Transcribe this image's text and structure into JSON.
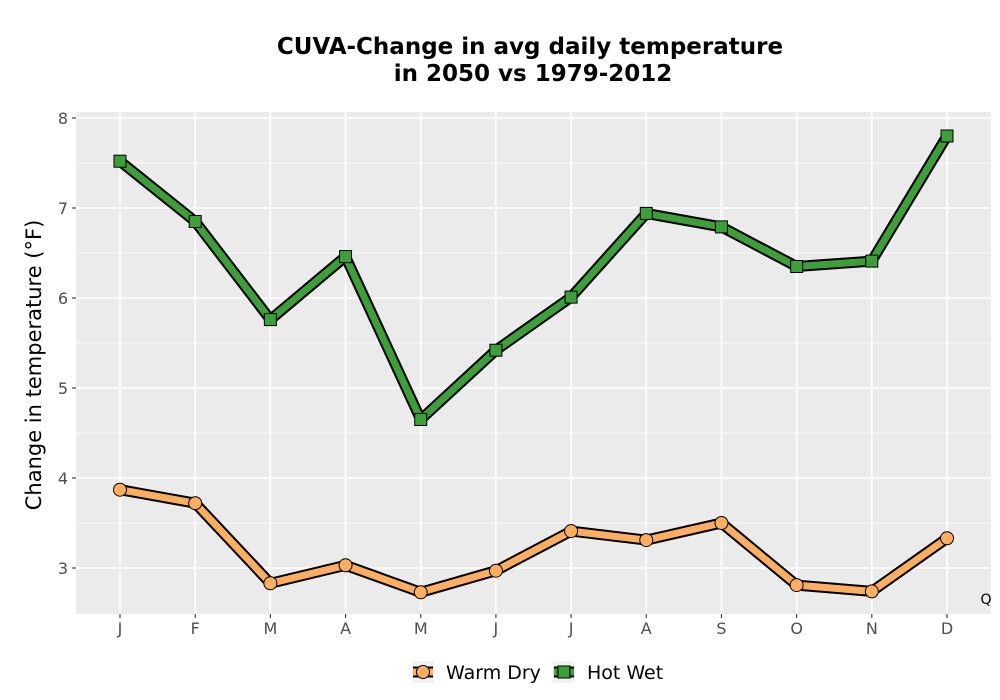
{
  "chart_data": {
    "type": "line",
    "title_lines": [
      "CUVA-Change in avg daily temperature",
      "in 2050 vs 1979-2012"
    ],
    "xlabel": "",
    "ylabel": "Change in temperature (°F)",
    "categories": [
      "J",
      "F",
      "M",
      "A",
      "M",
      "J",
      "J",
      "A",
      "S",
      "O",
      "N",
      "D"
    ],
    "ylim": [
      2.5,
      8.05
    ],
    "yticks": [
      3,
      4,
      5,
      6,
      7,
      8
    ],
    "grid": true,
    "legend_position": "bottom",
    "corner_label": "Q",
    "series": [
      {
        "name": "Warm Dry",
        "marker": "circle",
        "color": "#FDAE61",
        "values": [
          3.87,
          3.72,
          2.83,
          3.03,
          2.73,
          2.97,
          3.41,
          3.31,
          3.5,
          2.81,
          2.74,
          3.33
        ]
      },
      {
        "name": "Hot Wet",
        "marker": "square",
        "color": "#3D9E3A",
        "values": [
          7.52,
          6.85,
          5.76,
          6.46,
          4.65,
          5.42,
          6.01,
          6.94,
          6.79,
          6.35,
          6.41,
          7.8
        ]
      }
    ]
  }
}
